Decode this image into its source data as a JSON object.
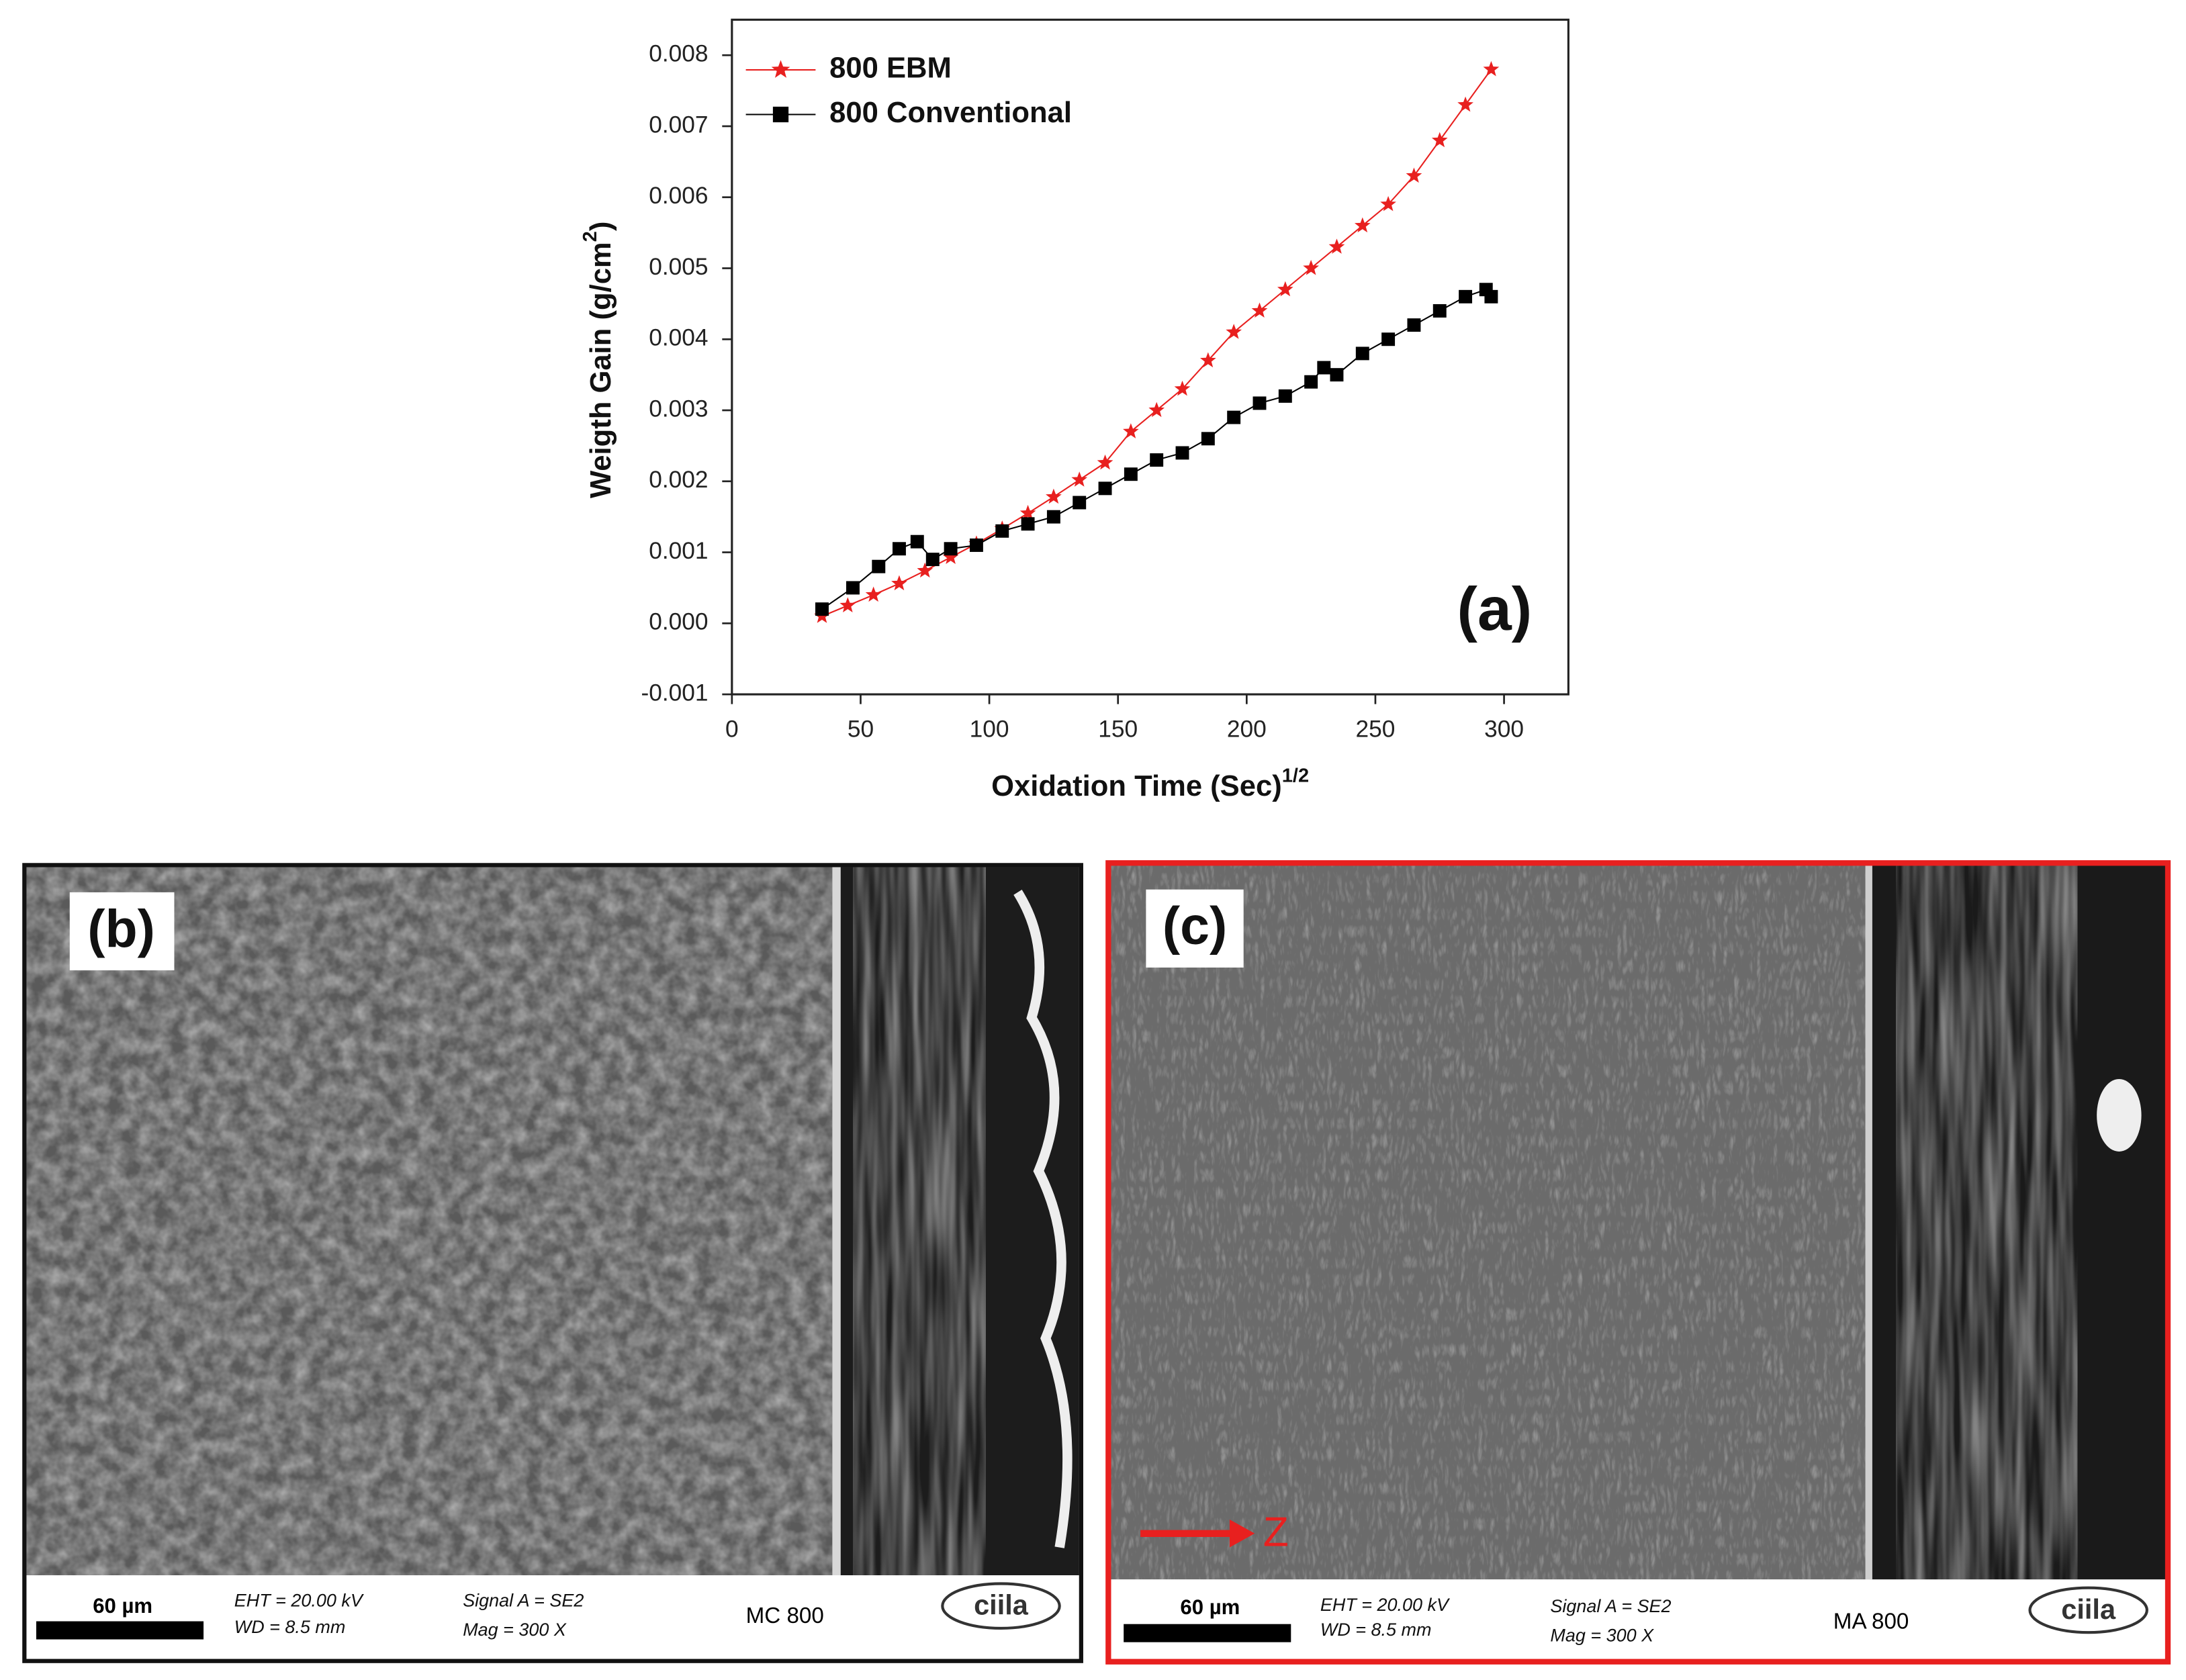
{
  "chart_data": {
    "type": "line",
    "ylabel": [
      "Weigth Gain (g/cm",
      "2",
      ")"
    ],
    "xlabel": [
      "Oxidation Time (Sec)",
      "1/2"
    ],
    "panel_label": "(a)",
    "xlim": [
      0,
      325
    ],
    "xticks": [
      0,
      50,
      100,
      150,
      200,
      250,
      300
    ],
    "ylim": [
      -0.001,
      0.0085
    ],
    "yticks": [
      -0.001,
      {
        "value": 0,
        "label": "0.000"
      },
      0.001,
      0.002,
      0.003,
      0.004,
      0.005,
      0.006,
      0.007,
      0.008
    ],
    "legend": "top-left",
    "series": [
      {
        "name": "800 EBM",
        "color": "#e8201f",
        "marker": "star",
        "x": [
          35,
          45,
          55,
          65,
          75,
          85,
          95,
          105,
          115,
          125,
          135,
          145,
          155,
          165,
          175,
          185,
          195,
          205,
          215,
          225,
          235,
          245,
          255,
          265,
          275,
          285,
          295
        ],
        "values": [
          0.0001,
          0.00025,
          0.0004,
          0.00056,
          0.00074,
          0.00093,
          0.00112,
          0.00133,
          0.00155,
          0.00178,
          0.00202,
          0.00226,
          0.0027,
          0.003,
          0.0033,
          0.0037,
          0.0041,
          0.0044,
          0.0047,
          0.005,
          0.0053,
          0.0056,
          0.0059,
          0.0063,
          0.0068,
          0.0073,
          0.0078
        ]
      },
      {
        "name": "800 Conventional",
        "color": "#000000",
        "marker": "square",
        "x": [
          35,
          47,
          57,
          65,
          72,
          78,
          85,
          95,
          105,
          115,
          125,
          135,
          145,
          155,
          165,
          175,
          185,
          195,
          205,
          215,
          225,
          230,
          235,
          245,
          255,
          265,
          275,
          285,
          293,
          295
        ],
        "values": [
          0.0002,
          0.0005,
          0.0008,
          0.00105,
          0.00115,
          0.0009,
          0.00105,
          0.0011,
          0.0013,
          0.0014,
          0.0015,
          0.0017,
          0.0019,
          0.0021,
          0.0023,
          0.0024,
          0.0026,
          0.0029,
          0.0031,
          0.0032,
          0.0034,
          0.0036,
          0.0035,
          0.0038,
          0.004,
          0.0042,
          0.0044,
          0.0046,
          0.0047,
          0.0046
        ]
      }
    ]
  },
  "panels": [
    {
      "label": "(b)",
      "scale_bar": "60 µm",
      "eht": "EHT = 20.00 kV",
      "wd": "WD =  8.5 mm",
      "signal": "Signal A = SE2",
      "mag": "Mag =    300 X",
      "sample": "MC 800",
      "logo": "ciila"
    },
    {
      "label": "(c)",
      "scale_bar": "60 µm",
      "eht": "EHT = 20.00 kV",
      "wd": "WD =  8.5 mm",
      "signal": "Signal A = SE2",
      "mag": "Mag =    300 X",
      "sample": "MA 800",
      "logo": "ciila",
      "direction": "Z"
    }
  ]
}
